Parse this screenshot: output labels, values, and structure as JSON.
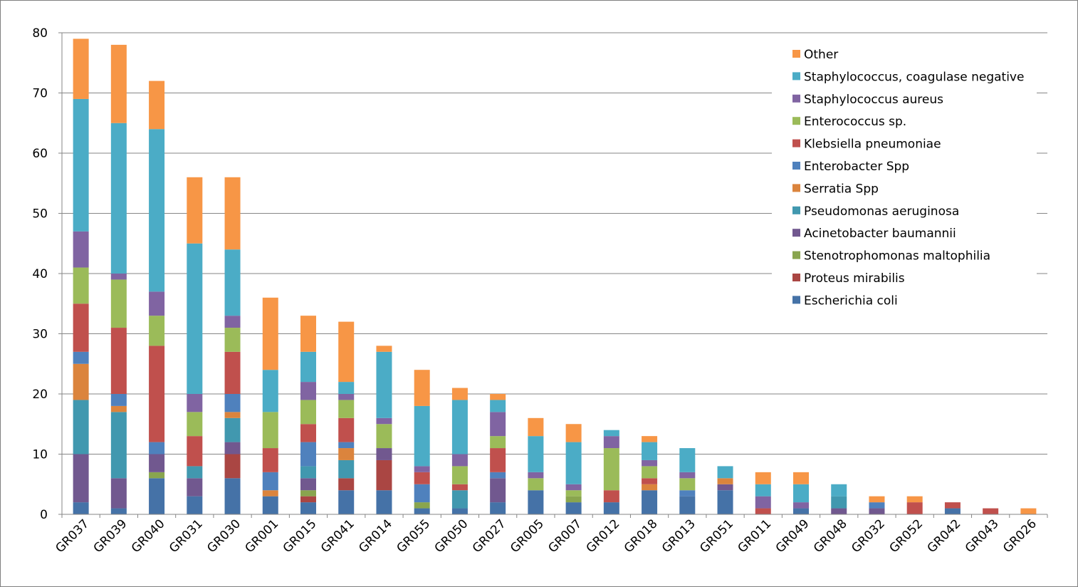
{
  "chart_data": {
    "type": "bar",
    "stacked": true,
    "title": "",
    "xlabel": "",
    "ylabel": "",
    "ylim": [
      0,
      80
    ],
    "yticks": [
      "0",
      "10",
      "20",
      "30",
      "40",
      "50",
      "60",
      "70",
      "80"
    ],
    "grid": true,
    "legend_position": "top-right",
    "categories": [
      "GR037",
      "GR039",
      "GR040",
      "GR031",
      "GR030",
      "GR001",
      "GR015",
      "GR041",
      "GR014",
      "GR055",
      "GR050",
      "GR027",
      "GR005",
      "GR007",
      "GR012",
      "GR018",
      "GR013",
      "GR051",
      "GR011",
      "GR049",
      "GR048",
      "GR032",
      "GR052",
      "GR042",
      "GR043",
      "GR026"
    ],
    "series": [
      {
        "name": "Escherichia coli",
        "color": "#4572a7",
        "values": [
          2,
          1,
          6,
          3,
          6,
          3,
          2,
          4,
          4,
          1,
          1,
          2,
          4,
          2,
          2,
          4,
          3,
          4,
          0,
          1,
          0,
          0,
          0,
          1,
          0,
          0
        ]
      },
      {
        "name": "Proteus mirabilis",
        "color": "#aa4643",
        "values": [
          0,
          0,
          0,
          0,
          4,
          0,
          1,
          2,
          5,
          0,
          0,
          0,
          0,
          0,
          0,
          0,
          0,
          0,
          0,
          0,
          0,
          0,
          0,
          0,
          0,
          0
        ]
      },
      {
        "name": "Stenotrophomonas maltophilia",
        "color": "#89a54e",
        "values": [
          0,
          0,
          1,
          0,
          0,
          0,
          1,
          0,
          0,
          1,
          0,
          0,
          0,
          1,
          0,
          0,
          0,
          0,
          0,
          0,
          0,
          0,
          0,
          0,
          0,
          0
        ]
      },
      {
        "name": "Acinetobacter baumannii",
        "color": "#71588f",
        "values": [
          8,
          5,
          3,
          3,
          2,
          0,
          2,
          0,
          2,
          0,
          0,
          4,
          0,
          0,
          0,
          0,
          0,
          1,
          0,
          0,
          1,
          1,
          0,
          0,
          0,
          0
        ]
      },
      {
        "name": "Pseudomonas aeruginosa",
        "color": "#4198af",
        "values": [
          9,
          11,
          0,
          2,
          4,
          0,
          2,
          3,
          0,
          0,
          3,
          0,
          0,
          0,
          0,
          0,
          0,
          0,
          0,
          0,
          2,
          0,
          0,
          0,
          0,
          0
        ]
      },
      {
        "name": "Serratia Spp",
        "color": "#db843d",
        "values": [
          6,
          1,
          0,
          0,
          1,
          1,
          0,
          2,
          0,
          0,
          0,
          0,
          0,
          0,
          0,
          1,
          0,
          1,
          0,
          0,
          0,
          0,
          0,
          0,
          0,
          0
        ]
      },
      {
        "name": "Enterobacter Spp",
        "color": "#4f81bd",
        "values": [
          2,
          2,
          2,
          0,
          3,
          3,
          4,
          1,
          0,
          3,
          0,
          1,
          0,
          0,
          0,
          0,
          1,
          0,
          0,
          0,
          0,
          1,
          0,
          0,
          0,
          0
        ]
      },
      {
        "name": "Klebsiella pneumoniae",
        "color": "#c0504d",
        "values": [
          8,
          11,
          16,
          5,
          7,
          4,
          3,
          4,
          0,
          2,
          1,
          4,
          0,
          0,
          2,
          1,
          0,
          0,
          1,
          0,
          0,
          0,
          2,
          1,
          1,
          0
        ]
      },
      {
        "name": "Enterococcus sp.",
        "color": "#9bbb59",
        "values": [
          6,
          8,
          5,
          4,
          4,
          6,
          4,
          3,
          4,
          0,
          3,
          2,
          2,
          1,
          7,
          2,
          2,
          0,
          0,
          0,
          0,
          0,
          0,
          0,
          0,
          0
        ]
      },
      {
        "name": "Staphylococcus aureus",
        "color": "#8064a2",
        "values": [
          6,
          1,
          4,
          3,
          2,
          0,
          3,
          1,
          1,
          1,
          2,
          4,
          1,
          1,
          2,
          1,
          1,
          0,
          2,
          1,
          0,
          0,
          0,
          0,
          0,
          0
        ]
      },
      {
        "name": "Staphylococcus, coagulase negative",
        "color": "#4bacc6",
        "values": [
          22,
          25,
          27,
          25,
          11,
          7,
          5,
          2,
          11,
          10,
          9,
          2,
          6,
          7,
          1,
          3,
          4,
          2,
          2,
          3,
          2,
          0,
          0,
          0,
          0,
          0
        ]
      },
      {
        "name": "Other",
        "color": "#f79646",
        "values": [
          10,
          13,
          8,
          11,
          12,
          12,
          6,
          10,
          1,
          6,
          2,
          1,
          3,
          3,
          0,
          1,
          0,
          0,
          2,
          2,
          0,
          1,
          1,
          0,
          0,
          1
        ]
      }
    ]
  }
}
